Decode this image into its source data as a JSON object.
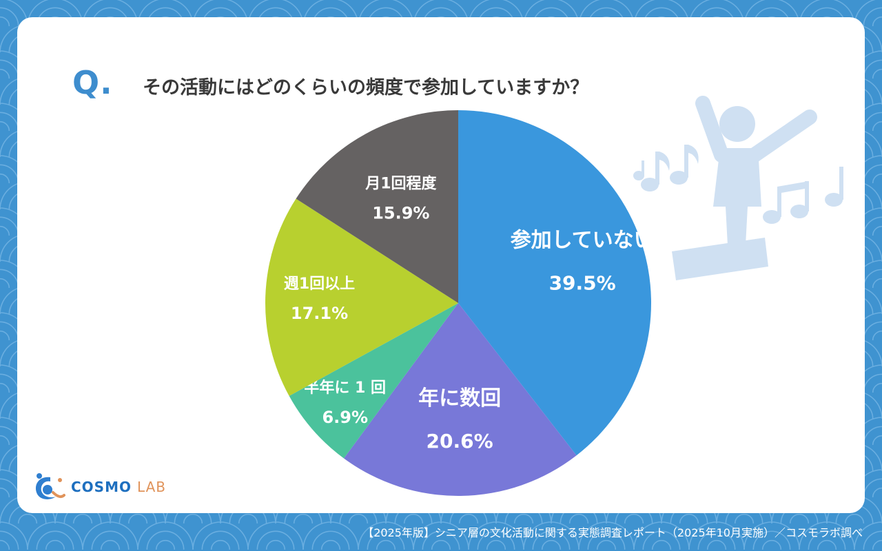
{
  "question": {
    "mark": "Q.",
    "text": "その活動にはどのくらいの頻度で参加していますか？"
  },
  "logo": {
    "text_main": "COSMO",
    "text_sub": "LAB"
  },
  "source": "【2025年版】シニア層の文化活動に関する実態調査レポート（2025年10月実施）／コスモラボ調べ",
  "colors": {
    "background": "#3f93d0",
    "card": "#ffffff",
    "accent": "#3e8dce",
    "deco": "#cfe0f2"
  },
  "chart_data": {
    "type": "pie",
    "title": "その活動にはどのくらいの頻度で参加していますか？",
    "start_angle_deg": 0,
    "direction": "clockwise",
    "slices": [
      {
        "label": "参加していない",
        "value": 39.5,
        "value_label": "39.5%",
        "color": "#3a97dd"
      },
      {
        "label": "年に数回",
        "value": 20.6,
        "value_label": "20.6%",
        "color": "#7878d8"
      },
      {
        "label": "半年に 1 回",
        "value": 6.9,
        "value_label": "6.9%",
        "color": "#4bc29c"
      },
      {
        "label": "週1回以上",
        "value": 17.1,
        "value_label": "17.1%",
        "color": "#b8d02f"
      },
      {
        "label": "月1回程度",
        "value": 15.9,
        "value_label": "15.9%",
        "color": "#656262"
      }
    ]
  }
}
